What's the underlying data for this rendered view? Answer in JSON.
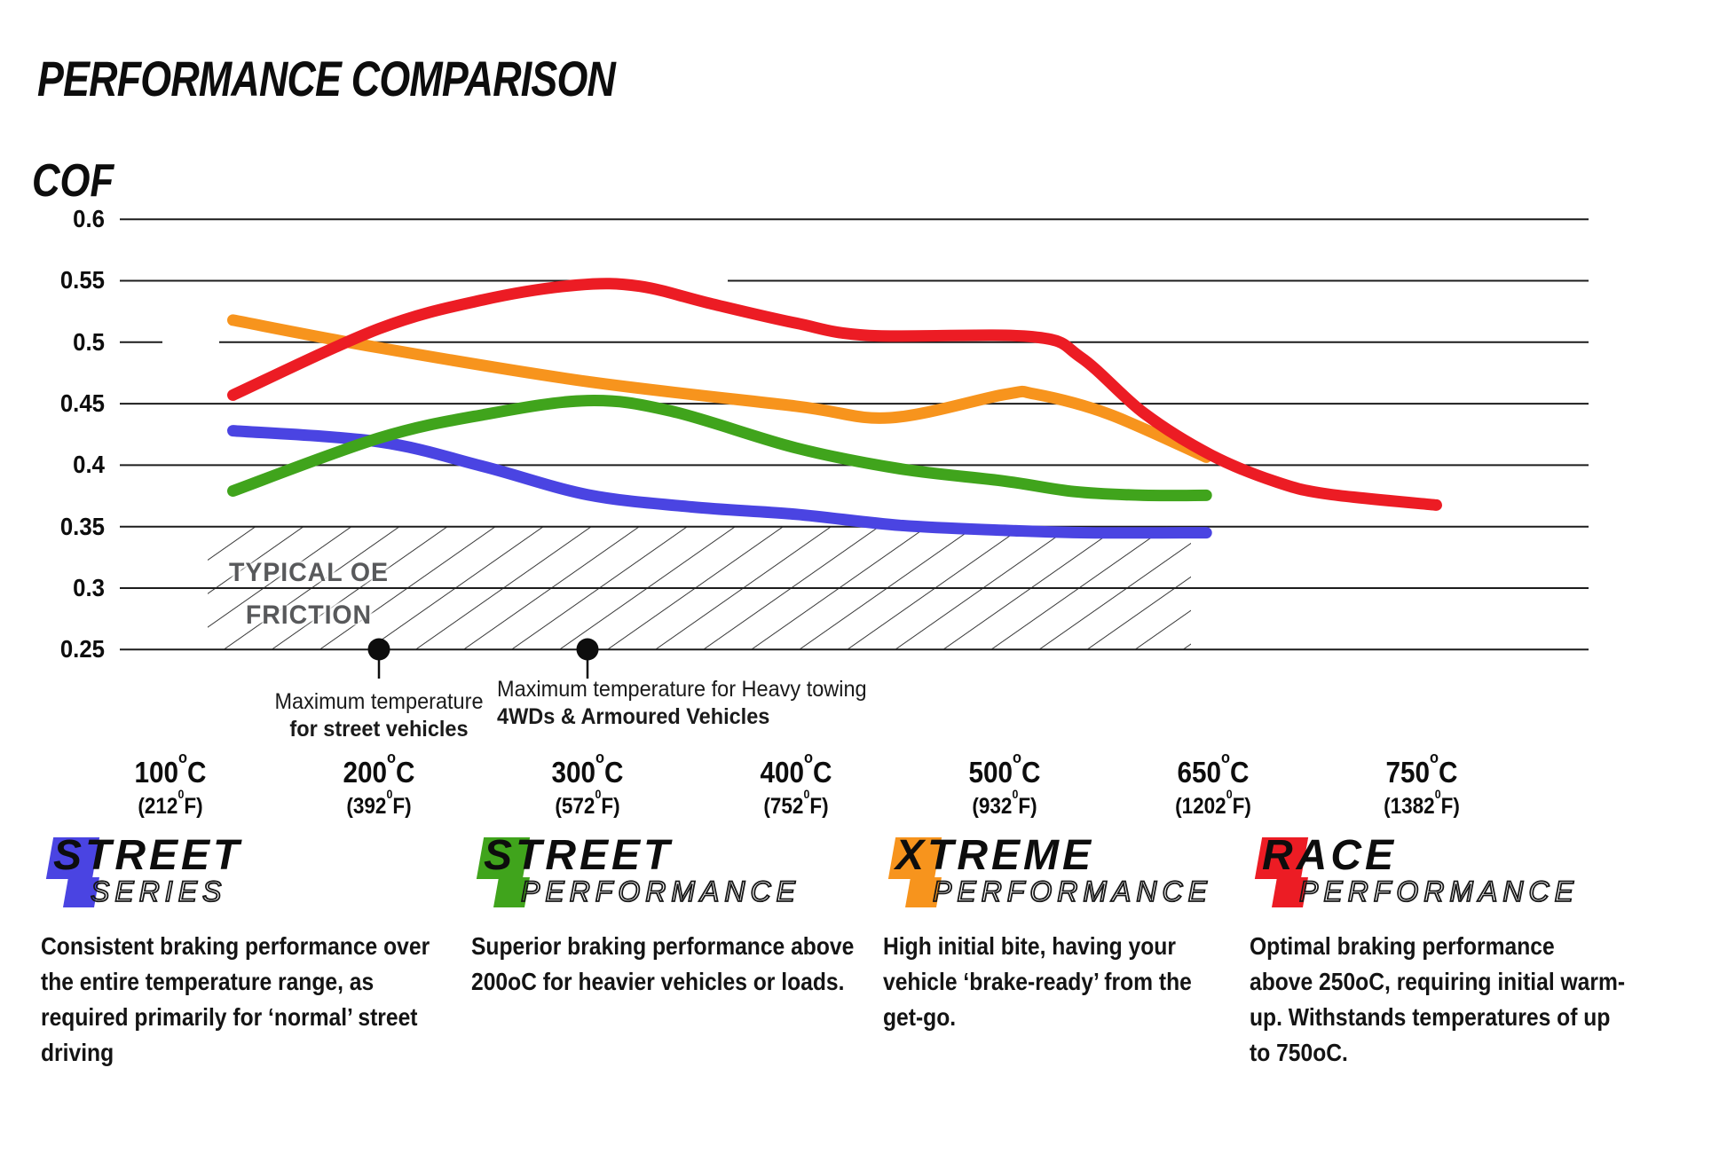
{
  "chart_data": {
    "type": "line",
    "title": "PERFORMANCE COMPARISON",
    "ylabel": "COF",
    "xlabel": "",
    "grid": "horizontal gridlines only",
    "legend_position": "below, as branded logo blocks with descriptions",
    "ylim": [
      0.25,
      0.625
    ],
    "yticks": [
      0.6,
      0.55,
      0.5,
      0.45,
      0.4,
      0.35,
      0.3,
      0.25
    ],
    "categories_c": [
      100,
      200,
      300,
      400,
      500,
      650,
      750
    ],
    "categories_f": [
      212,
      392,
      572,
      752,
      932,
      1202,
      1382
    ],
    "x_unit_primary": "oC",
    "x_unit_secondary": "0F",
    "series": [
      {
        "name": "Street Series",
        "color": "#4a44e2",
        "points": [
          [
            130,
            0.428
          ],
          [
            200,
            0.419
          ],
          [
            250,
            0.399
          ],
          [
            300,
            0.376
          ],
          [
            350,
            0.366
          ],
          [
            400,
            0.36
          ],
          [
            450,
            0.351
          ],
          [
            500,
            0.347
          ],
          [
            560,
            0.345
          ],
          [
            645,
            0.345
          ]
        ]
      },
      {
        "name": "Street Performance",
        "color": "#40a41c",
        "points": [
          [
            130,
            0.379
          ],
          [
            200,
            0.422
          ],
          [
            250,
            0.441
          ],
          [
            300,
            0.4525
          ],
          [
            340,
            0.444
          ],
          [
            400,
            0.414
          ],
          [
            450,
            0.397
          ],
          [
            500,
            0.387
          ],
          [
            550,
            0.3785
          ],
          [
            600,
            0.3755
          ],
          [
            645,
            0.3755
          ]
        ]
      },
      {
        "name": "Xtreme Performance",
        "color": "#f7941d",
        "points": [
          [
            130,
            0.518
          ],
          [
            200,
            0.4955
          ],
          [
            300,
            0.468
          ],
          [
            400,
            0.448
          ],
          [
            445,
            0.4385
          ],
          [
            500,
            0.4575
          ],
          [
            522,
            0.4578
          ],
          [
            575,
            0.4415
          ],
          [
            645,
            0.4065
          ]
        ]
      },
      {
        "name": "Race Performance",
        "color": "#ec1c24",
        "points": [
          [
            130,
            0.457
          ],
          [
            200,
            0.511
          ],
          [
            250,
            0.5345
          ],
          [
            295,
            0.5465
          ],
          [
            325,
            0.5455
          ],
          [
            360,
            0.531
          ],
          [
            400,
            0.5155
          ],
          [
            435,
            0.5055
          ],
          [
            520,
            0.5045
          ],
          [
            555,
            0.4875
          ],
          [
            600,
            0.4425
          ],
          [
            648,
            0.4085
          ],
          [
            680,
            0.3865
          ],
          [
            705,
            0.3765
          ],
          [
            757,
            0.3675
          ]
        ]
      }
    ],
    "oe_band": {
      "label": [
        "TYPICAL OE",
        "FRICTION"
      ],
      "cof_top": 0.35,
      "cof_bottom": 0.25,
      "temp_start": 118,
      "temp_end": 634
    },
    "annotations": [
      {
        "temp": 200,
        "align": "center",
        "lines": [
          "Maximum temperature",
          "for street vehicles"
        ]
      },
      {
        "temp": 300,
        "align": "left",
        "lines": [
          "Maximum temperature for Heavy towing",
          "4WDs & Armoured Vehicles"
        ]
      }
    ]
  },
  "legend": [
    {
      "brand": "STREET",
      "sub": "SERIES",
      "color": "#4a44e2",
      "description_lines": [
        "Consistent braking performance over",
        "the entire temperature range, as",
        "required primarily for ‘normal’ street",
        "driving"
      ]
    },
    {
      "brand": "STREET",
      "sub": "PERFORMANCE",
      "color": "#40a41c",
      "description_lines": [
        "Superior braking performance above",
        "200oC for heavier vehicles or loads."
      ]
    },
    {
      "brand": "XTREME",
      "sub": "PERFORMANCE",
      "color": "#f7941d",
      "description_lines": [
        "High initial bite, having your",
        "vehicle ‘brake-ready’ from the",
        "get-go."
      ]
    },
    {
      "brand": "RACE",
      "sub": "PERFORMANCE",
      "color": "#ec1c24",
      "description_lines": [
        "Optimal braking performance",
        "above 250oC, requiring initial warm-",
        "up. Withstands temperatures of up",
        "to 750oC."
      ]
    }
  ]
}
